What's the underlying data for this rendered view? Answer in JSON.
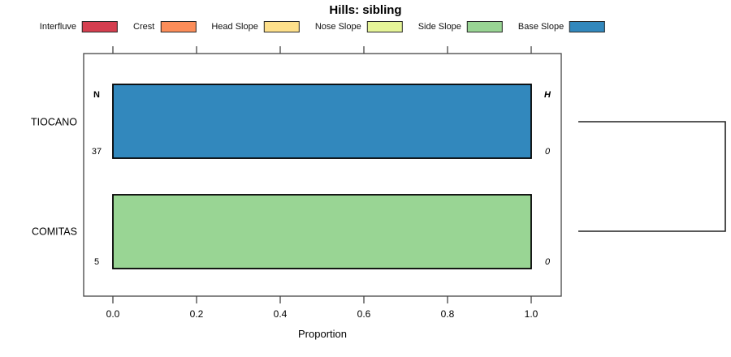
{
  "title": "Hills: sibling",
  "legend": {
    "position": "top",
    "items": [
      {
        "label": "Interfluve",
        "color": "#d53e4f"
      },
      {
        "label": "Crest",
        "color": "#fc8d59"
      },
      {
        "label": "Head Slope",
        "color": "#fee08b"
      },
      {
        "label": "Nose Slope",
        "color": "#e6f598"
      },
      {
        "label": "Side Slope",
        "color": "#99d594"
      },
      {
        "label": "Base Slope",
        "color": "#3288bd"
      }
    ]
  },
  "chart_data": {
    "type": "bar",
    "orientation": "horizontal",
    "title": "Hills: sibling",
    "xlabel": "Proportion",
    "xlim": [
      0,
      1
    ],
    "xticks": [
      0.0,
      0.2,
      0.4,
      0.6,
      0.8,
      1.0
    ],
    "xtick_labels": [
      "0.0",
      "0.2",
      "0.4",
      "0.6",
      "0.8",
      "1.0"
    ],
    "grid": false,
    "legend_position": "top",
    "column_headers": {
      "left": "N",
      "right": "H"
    },
    "categories": [
      "TIOCANO",
      "COMITAS"
    ],
    "rows": [
      {
        "category": "TIOCANO",
        "segments": [
          {
            "class": "Base Slope",
            "proportion": 1.0
          }
        ],
        "n": "37",
        "h": "0"
      },
      {
        "category": "COMITAS",
        "segments": [
          {
            "class": "Side Slope",
            "proportion": 1.0
          }
        ],
        "n": "5",
        "h": "0"
      }
    ],
    "right_dendrogram": {
      "joins": [
        "TIOCANO",
        "COMITAS"
      ]
    }
  }
}
